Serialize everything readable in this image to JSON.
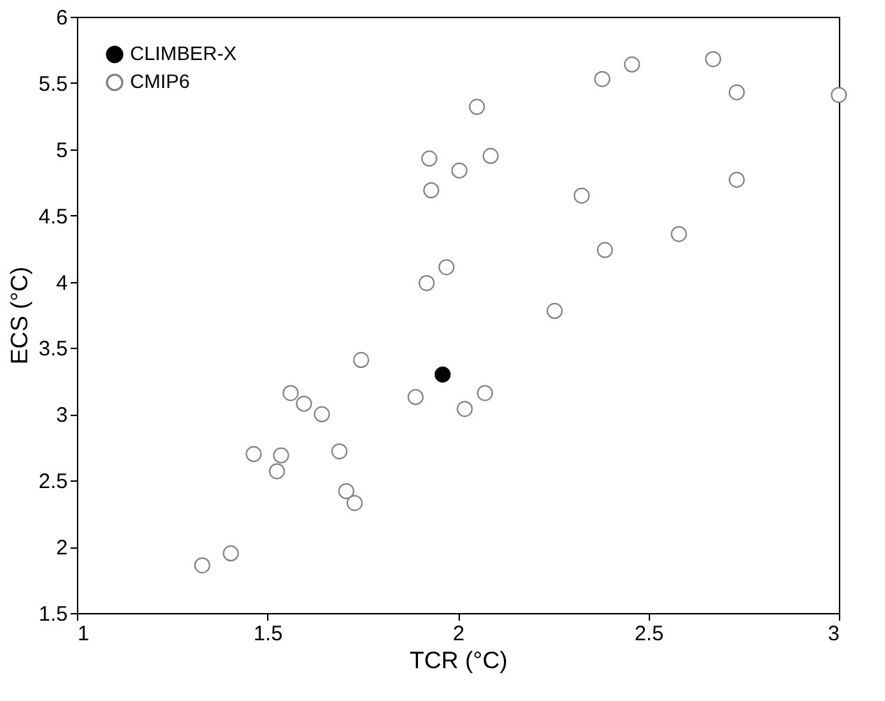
{
  "chart_data": {
    "type": "scatter",
    "xlabel": "TCR (°C)",
    "ylabel": "ECS (°C)",
    "xlim": [
      1,
      3
    ],
    "xticks": [
      1,
      1.5,
      2,
      2.5,
      3
    ],
    "ylim": [
      1.5,
      6
    ],
    "yticks": [
      1.5,
      2,
      2.5,
      3,
      3.5,
      4,
      4.5,
      5,
      5.5,
      6
    ],
    "grid": false,
    "legend": "top left",
    "marker": "circle",
    "series": [
      {
        "name": "CLIMBER-X",
        "color": "#000000",
        "x": [
          1.96
        ],
        "values": [
          3.3
        ]
      },
      {
        "name": "CMIP6",
        "color": "#808080",
        "x": [
          2.457,
          2.67,
          2.379,
          2.732,
          3.0,
          2.05,
          1.925,
          2.086,
          2.004,
          2.732,
          1.93,
          2.325,
          2.386,
          2.58,
          1.97,
          1.918,
          2.254,
          1.746,
          1.889,
          2.071,
          2.018,
          1.561,
          1.596,
          1.643,
          1.689,
          1.464,
          1.536,
          1.525,
          1.707,
          1.729,
          1.329,
          1.404
        ],
        "values": [
          5.64,
          5.68,
          5.53,
          5.43,
          5.41,
          5.32,
          4.93,
          4.95,
          4.84,
          4.77,
          4.69,
          4.65,
          4.24,
          4.36,
          4.11,
          3.99,
          3.78,
          3.41,
          3.13,
          3.16,
          3.04,
          3.16,
          3.08,
          3.0,
          2.72,
          2.7,
          2.69,
          2.57,
          2.42,
          2.33,
          1.86,
          1.95
        ]
      }
    ]
  }
}
